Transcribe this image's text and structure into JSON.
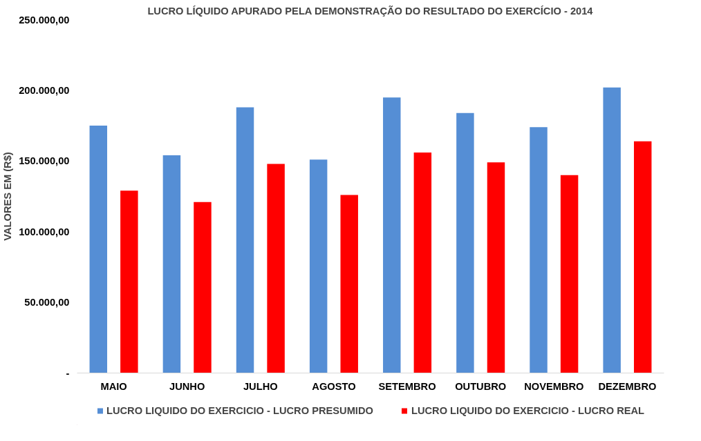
{
  "chart_data": {
    "type": "bar",
    "title": "LUCRO LÍQUIDO APURADO PELA DEMONSTRAÇÃO DO RESULTADO DO EXERCÍCIO - 2014",
    "ylabel": "VALORES EM (R$)",
    "categories": [
      "MAIO",
      "JUNHO",
      "JULHO",
      "AGOSTO",
      "SETEMBRO",
      "OUTUBRO",
      "NOVEMBRO",
      "DEZEMBRO"
    ],
    "series": [
      {
        "name": "LUCRO LIQUIDO DO EXERCICIO - LUCRO PRESUMIDO",
        "color": "#558ed5",
        "values": [
          175000,
          154000,
          188000,
          151000,
          195000,
          184000,
          174000,
          202000
        ]
      },
      {
        "name": "LUCRO LIQUIDO DO EXERCICIO - LUCRO REAL",
        "color": "#ff0000",
        "values": [
          129000,
          121000,
          148000,
          126000,
          156000,
          149000,
          140000,
          164000
        ]
      }
    ],
    "ylim": [
      0,
      250000
    ],
    "yticks": [
      {
        "value": 0,
        "label": "-"
      },
      {
        "value": 50000,
        "label": "50.000,00"
      },
      {
        "value": 100000,
        "label": "100.000,00"
      },
      {
        "value": 150000,
        "label": "150.000,00"
      },
      {
        "value": 200000,
        "label": "200.000,00"
      },
      {
        "value": 250000,
        "label": "250.000,00"
      }
    ],
    "grid": false,
    "legend": "bottom"
  }
}
